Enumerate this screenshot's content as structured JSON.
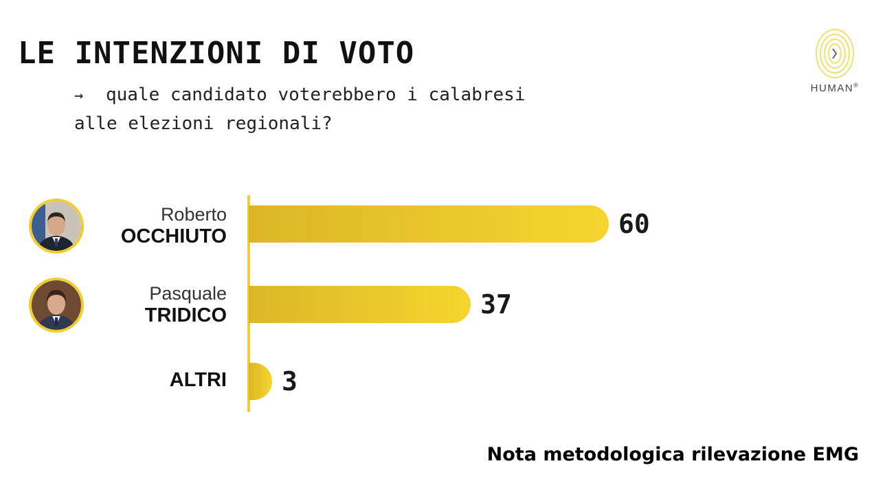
{
  "header": {
    "title": "LE INTENZIONI DI VOTO",
    "subtitle_line1": "quale candidato voterebbero i calabresi",
    "subtitle_line2": "alle elezioni regionali?",
    "arrow": "→"
  },
  "logo": {
    "text": "HUMAN",
    "mark": "®",
    "icon": "human-fingerprint-logo"
  },
  "note": "Nota metodologica rilevazione EMG",
  "colors": {
    "bar": "#f2cd2e",
    "bar_dark": "#dcb627",
    "text": "#111111"
  },
  "chart_data": {
    "type": "bar",
    "orientation": "horizontal",
    "title": "LE INTENZIONI DI VOTO",
    "subtitle": "quale candidato voterebbero i calabresi alle elezioni regionali?",
    "xlim": [
      0,
      60
    ],
    "grid": false,
    "categories": [
      {
        "first": "Roberto",
        "last": "OCCHIUTO",
        "photo": true
      },
      {
        "first": "Pasquale",
        "last": "TRIDICO",
        "photo": true
      },
      {
        "first": "",
        "last": "ALTRI",
        "photo": false
      }
    ],
    "values": [
      60,
      37,
      3
    ],
    "data_labels": [
      "60",
      "37",
      "3"
    ]
  }
}
